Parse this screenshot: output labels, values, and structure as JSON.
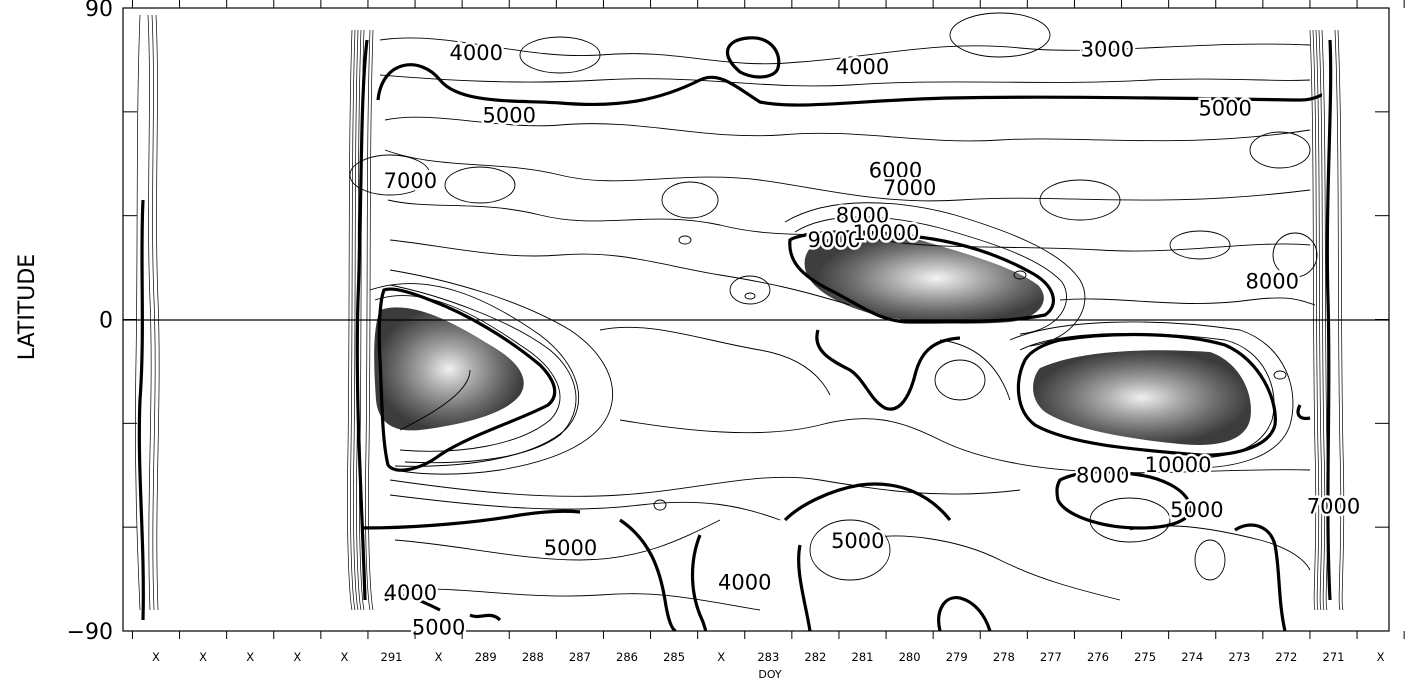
{
  "chart_data": {
    "type": "contour",
    "title": "",
    "xlabel": "DOY",
    "ylabel": "LATITUDE",
    "ylim": [
      -90,
      90
    ],
    "y_ticks": [
      {
        "value": 90,
        "label": "90"
      },
      {
        "value": 0,
        "label": "0"
      },
      {
        "value": -90,
        "label": "−90"
      }
    ],
    "x_ticks": [
      "X",
      "X",
      "X",
      "X",
      "X",
      "291",
      "X",
      "289",
      "288",
      "287",
      "286",
      "285",
      "X",
      "283",
      "282",
      "281",
      "280",
      "279",
      "278",
      "277",
      "276",
      "275",
      "274",
      "273",
      "272",
      "271",
      "X",
      "X"
    ],
    "zero_line": true,
    "contour_labels": [
      {
        "text": "3000",
        "x": 275.8,
        "y": 78
      },
      {
        "text": "4000",
        "x": 281.0,
        "y": 73
      },
      {
        "text": "4000",
        "x": 289.2,
        "y": 77
      },
      {
        "text": "5000",
        "x": 288.5,
        "y": 59
      },
      {
        "text": "5000",
        "x": 273.3,
        "y": 61
      },
      {
        "text": "6000",
        "x": 280.3,
        "y": 43
      },
      {
        "text": "7000",
        "x": 280.0,
        "y": 38
      },
      {
        "text": "7000",
        "x": 290.6,
        "y": 40
      },
      {
        "text": "8000",
        "x": 281.0,
        "y": 30
      },
      {
        "text": "9000",
        "x": 281.6,
        "y": 23
      },
      {
        "text": "10000",
        "x": 280.5,
        "y": 25
      },
      {
        "text": "8000",
        "x": 272.3,
        "y": 11
      },
      {
        "text": "8000",
        "x": 275.9,
        "y": -45
      },
      {
        "text": "10000",
        "x": 274.3,
        "y": -42
      },
      {
        "text": "5000",
        "x": 273.9,
        "y": -55
      },
      {
        "text": "7000",
        "x": 271.0,
        "y": -54
      },
      {
        "text": "5000",
        "x": 287.2,
        "y": -66
      },
      {
        "text": "5000",
        "x": 281.1,
        "y": -64
      },
      {
        "text": "4000",
        "x": 283.5,
        "y": -76
      },
      {
        "text": "4000",
        "x": 290.6,
        "y": -79
      },
      {
        "text": "5000",
        "x": 290.0,
        "y": -89
      }
    ],
    "shaded_maxima": [
      {
        "center_doy": 290.5,
        "center_lat": -17
      },
      {
        "center_doy": 279.4,
        "center_lat": 13
      },
      {
        "center_doy": 274.0,
        "center_lat": -27
      }
    ]
  }
}
